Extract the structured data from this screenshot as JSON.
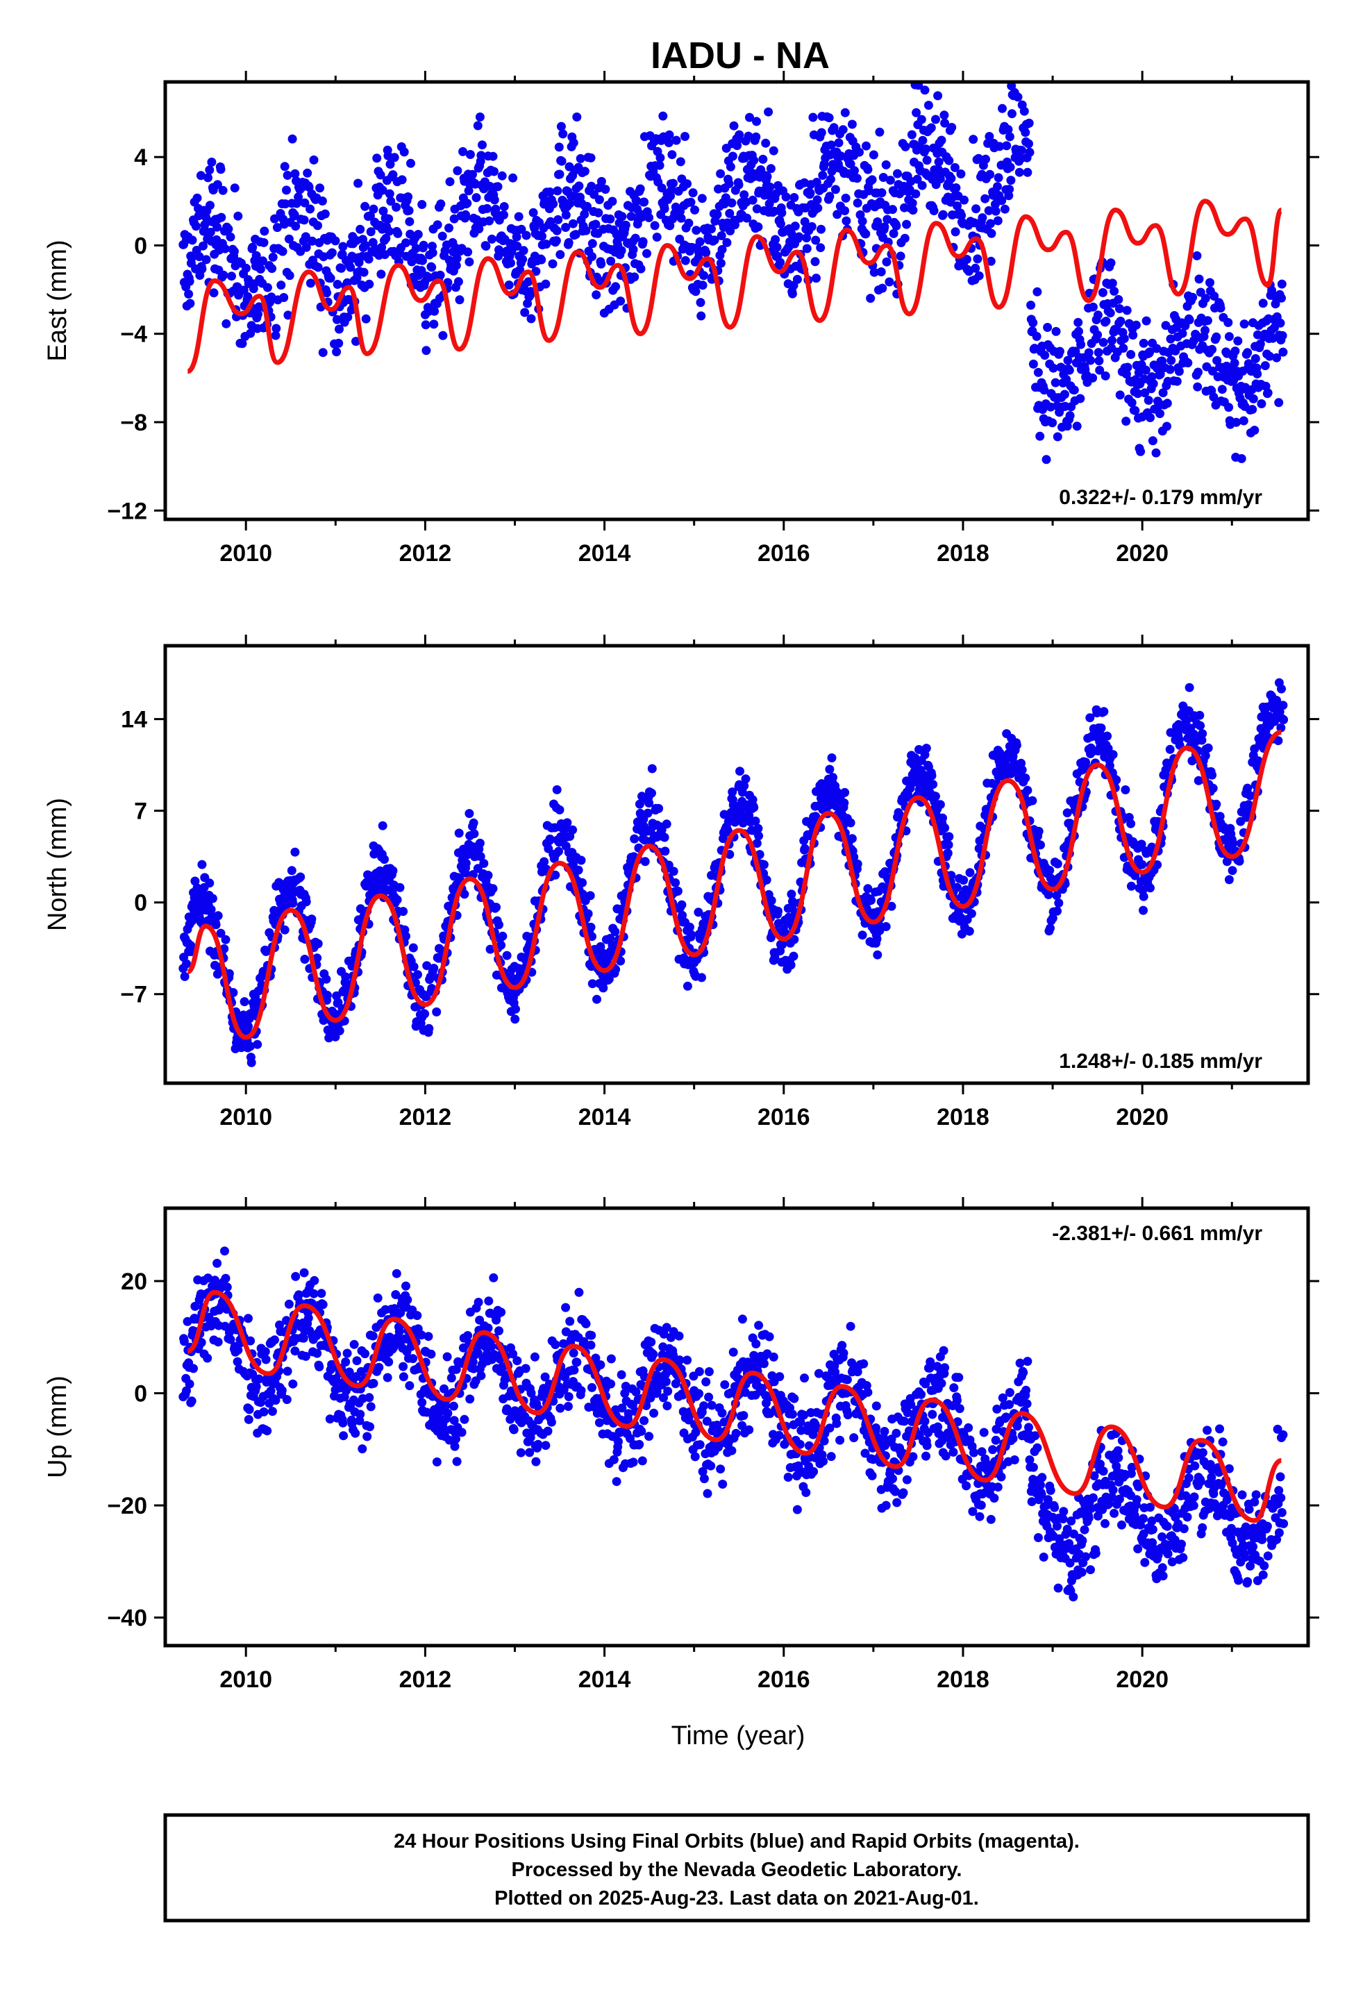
{
  "chart_data": {
    "type": "scatter",
    "title": "IADU - NA",
    "xlabel": "Time (year)",
    "x_ticks": [
      2010,
      2012,
      2014,
      2016,
      2018,
      2020
    ],
    "xlim": [
      2009.1,
      2021.85
    ],
    "last_data_year": 2021.58,
    "series_colors": {
      "data": "#0a00f0",
      "fit": "#f01010"
    },
    "panels": [
      {
        "name": "East",
        "ylabel": "East (mm)",
        "ylim": [
          -12.4,
          7.4
        ],
        "y_ticks": [
          4,
          0,
          -4,
          -8,
          -12
        ],
        "rate_text": "0.322+/- 0.179 mm/yr",
        "rate_position": "bottom-right",
        "offset_year": 2018.75,
        "data_segments": [
          {
            "start": 2009.3,
            "end": 2018.75,
            "a": -1.0,
            "slope": 0.45,
            "amp": 1.8,
            "phase": 0.6,
            "noise": 1.5
          },
          {
            "start": 2018.75,
            "end": 2021.58,
            "a": -7.2,
            "slope": 0.2,
            "amp": 1.8,
            "phase": 0.6,
            "noise": 1.5
          }
        ],
        "fit": [
          {
            "year": 2009.35,
            "value": -5.7
          },
          {
            "year": 2009.65,
            "value": -1.6
          },
          {
            "year": 2009.95,
            "value": -3.1
          },
          {
            "year": 2010.15,
            "value": -2.3
          },
          {
            "year": 2010.35,
            "value": -5.3
          },
          {
            "year": 2010.7,
            "value": -1.2
          },
          {
            "year": 2010.95,
            "value": -2.9
          },
          {
            "year": 2011.15,
            "value": -1.9
          },
          {
            "year": 2011.35,
            "value": -4.9
          },
          {
            "year": 2011.7,
            "value": -0.9
          },
          {
            "year": 2011.95,
            "value": -2.5
          },
          {
            "year": 2012.15,
            "value": -1.6
          },
          {
            "year": 2012.38,
            "value": -4.7
          },
          {
            "year": 2012.7,
            "value": -0.6
          },
          {
            "year": 2012.95,
            "value": -2.2
          },
          {
            "year": 2013.15,
            "value": -1.2
          },
          {
            "year": 2013.38,
            "value": -4.3
          },
          {
            "year": 2013.7,
            "value": -0.3
          },
          {
            "year": 2013.95,
            "value": -1.9
          },
          {
            "year": 2014.15,
            "value": -0.9
          },
          {
            "year": 2014.4,
            "value": -4.0
          },
          {
            "year": 2014.7,
            "value": 0.0
          },
          {
            "year": 2014.95,
            "value": -1.5
          },
          {
            "year": 2015.15,
            "value": -0.6
          },
          {
            "year": 2015.4,
            "value": -3.7
          },
          {
            "year": 2015.7,
            "value": 0.4
          },
          {
            "year": 2015.95,
            "value": -1.2
          },
          {
            "year": 2016.15,
            "value": -0.3
          },
          {
            "year": 2016.4,
            "value": -3.4
          },
          {
            "year": 2016.7,
            "value": 0.7
          },
          {
            "year": 2016.95,
            "value": -0.8
          },
          {
            "year": 2017.15,
            "value": 0.0
          },
          {
            "year": 2017.4,
            "value": -3.1
          },
          {
            "year": 2017.7,
            "value": 1.0
          },
          {
            "year": 2017.95,
            "value": -0.5
          },
          {
            "year": 2018.15,
            "value": 0.3
          },
          {
            "year": 2018.4,
            "value": -2.8
          },
          {
            "year": 2018.7,
            "value": 1.3
          },
          {
            "year": 2018.95,
            "value": -0.2
          },
          {
            "year": 2019.15,
            "value": 0.6
          },
          {
            "year": 2019.4,
            "value": -2.5
          },
          {
            "year": 2019.7,
            "value": 1.6
          },
          {
            "year": 2019.95,
            "value": 0.1
          },
          {
            "year": 2020.15,
            "value": 0.9
          },
          {
            "year": 2020.4,
            "value": -2.2
          },
          {
            "year": 2020.7,
            "value": 2.0
          },
          {
            "year": 2020.95,
            "value": 0.5
          },
          {
            "year": 2021.15,
            "value": 1.2
          },
          {
            "year": 2021.4,
            "value": -1.8
          },
          {
            "year": 2021.55,
            "value": 1.6
          }
        ]
      },
      {
        "name": "North",
        "ylabel": "North (mm)",
        "ylim": [
          -13.8,
          19.6
        ],
        "y_ticks": [
          14,
          7,
          0,
          -7
        ],
        "rate_text": "1.248+/- 0.185 mm/yr",
        "rate_position": "bottom-right",
        "data_segments": [
          {
            "start": 2009.3,
            "end": 2021.58,
            "a": -5.6,
            "slope": 1.25,
            "amp": 5.5,
            "phase": 0.5,
            "noise": 1.3
          }
        ],
        "fit": [
          {
            "year": 2009.35,
            "value": -5.3
          },
          {
            "year": 2009.55,
            "value": -1.8
          },
          {
            "year": 2010.0,
            "value": -10.3
          },
          {
            "year": 2010.5,
            "value": -0.6
          },
          {
            "year": 2011.0,
            "value": -9.0
          },
          {
            "year": 2011.5,
            "value": 0.5
          },
          {
            "year": 2012.0,
            "value": -7.8
          },
          {
            "year": 2012.5,
            "value": 1.8
          },
          {
            "year": 2013.0,
            "value": -6.5
          },
          {
            "year": 2013.5,
            "value": 3.0
          },
          {
            "year": 2014.0,
            "value": -5.2
          },
          {
            "year": 2014.5,
            "value": 4.3
          },
          {
            "year": 2015.0,
            "value": -4.0
          },
          {
            "year": 2015.5,
            "value": 5.5
          },
          {
            "year": 2016.0,
            "value": -2.8
          },
          {
            "year": 2016.5,
            "value": 6.8
          },
          {
            "year": 2017.0,
            "value": -1.5
          },
          {
            "year": 2017.5,
            "value": 8.0
          },
          {
            "year": 2018.0,
            "value": -0.3
          },
          {
            "year": 2018.5,
            "value": 9.3
          },
          {
            "year": 2019.0,
            "value": 1.0
          },
          {
            "year": 2019.5,
            "value": 10.5
          },
          {
            "year": 2020.0,
            "value": 2.3
          },
          {
            "year": 2020.5,
            "value": 11.8
          },
          {
            "year": 2021.0,
            "value": 3.5
          },
          {
            "year": 2021.55,
            "value": 13.0
          }
        ]
      },
      {
        "name": "Up",
        "ylabel": "Up (mm)",
        "ylim": [
          -45,
          33
        ],
        "y_ticks": [
          20,
          0,
          -20,
          -40
        ],
        "rate_text": "-2.381+/- 0.661 mm/yr",
        "rate_position": "top-right",
        "offset_year": 2018.75,
        "data_segments": [
          {
            "start": 2009.3,
            "end": 2018.75,
            "a": 10.0,
            "slope": -2.0,
            "amp": 7.0,
            "phase": 0.7,
            "noise": 4.5
          },
          {
            "start": 2018.75,
            "end": 2021.58,
            "a": -26.0,
            "slope": 0.5,
            "amp": 7.0,
            "phase": 0.7,
            "noise": 4.5
          }
        ],
        "fit": [
          {
            "year": 2009.35,
            "value": 7.5
          },
          {
            "year": 2009.65,
            "value": 18.0
          },
          {
            "year": 2010.25,
            "value": 3.5
          },
          {
            "year": 2010.65,
            "value": 15.6
          },
          {
            "year": 2011.25,
            "value": 1.3
          },
          {
            "year": 2011.65,
            "value": 13.2
          },
          {
            "year": 2012.25,
            "value": -1.1
          },
          {
            "year": 2012.65,
            "value": 10.8
          },
          {
            "year": 2013.25,
            "value": -3.5
          },
          {
            "year": 2013.65,
            "value": 8.4
          },
          {
            "year": 2014.25,
            "value": -5.9
          },
          {
            "year": 2014.65,
            "value": 6.0
          },
          {
            "year": 2015.25,
            "value": -8.3
          },
          {
            "year": 2015.65,
            "value": 3.6
          },
          {
            "year": 2016.25,
            "value": -10.7
          },
          {
            "year": 2016.65,
            "value": 1.2
          },
          {
            "year": 2017.25,
            "value": -13.1
          },
          {
            "year": 2017.65,
            "value": -1.2
          },
          {
            "year": 2018.25,
            "value": -15.5
          },
          {
            "year": 2018.65,
            "value": -3.6
          },
          {
            "year": 2019.25,
            "value": -17.9
          },
          {
            "year": 2019.65,
            "value": -6.0
          },
          {
            "year": 2020.25,
            "value": -20.3
          },
          {
            "year": 2020.65,
            "value": -8.4
          },
          {
            "year": 2021.25,
            "value": -22.7
          },
          {
            "year": 2021.55,
            "value": -12.0
          }
        ]
      }
    ],
    "caption_lines": [
      "24 Hour Positions Using Final Orbits (blue) and Rapid Orbits (magenta).",
      "Processed by the Nevada Geodetic Laboratory.",
      "Plotted on 2025-Aug-23. Last data on 2021-Aug-01."
    ]
  }
}
